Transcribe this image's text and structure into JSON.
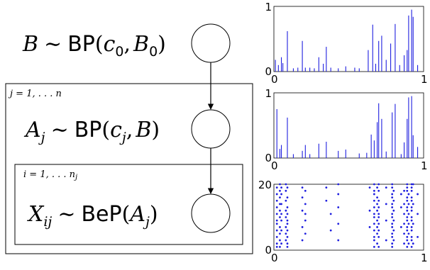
{
  "model": {
    "eq_b": {
      "lhs": "B",
      "op": "∼",
      "dist": "BP",
      "open": "(",
      "arg1": "c",
      "arg1_sub": "0",
      "comma": ",",
      "arg2": "B",
      "arg2_sub": "0",
      "close": ")"
    },
    "eq_a": {
      "lhs": "A",
      "lhs_sub": "j",
      "op": "∼",
      "dist": "BP",
      "open": "(",
      "arg1": "c",
      "arg1_sub": "j",
      "comma": ",",
      "arg2": "B",
      "close": ")"
    },
    "eq_x": {
      "lhs": "X",
      "lhs_sub": "ij",
      "op": "∼",
      "dist": "BeP",
      "open": "(",
      "arg1": "A",
      "arg1_sub": "j",
      "close": ")"
    },
    "plate_outer": {
      "label": "j = 1, . . . n"
    },
    "plate_inner": {
      "label": "i = 1, . . . n",
      "label_sub": "j"
    }
  },
  "chart_data": [
    {
      "type": "bar",
      "title": "",
      "xlabel": "",
      "ylabel": "",
      "xlim": [
        0,
        1
      ],
      "ylim": [
        0,
        1
      ],
      "xticks": [
        "0",
        "1"
      ],
      "yticks": [
        "0",
        "1"
      ],
      "color": "#1f1fdf",
      "x": [
        0.01,
        0.03,
        0.05,
        0.06,
        0.09,
        0.13,
        0.16,
        0.19,
        0.21,
        0.24,
        0.27,
        0.3,
        0.33,
        0.35,
        0.38,
        0.43,
        0.48,
        0.54,
        0.57,
        0.63,
        0.66,
        0.68,
        0.7,
        0.72,
        0.75,
        0.78,
        0.81,
        0.84,
        0.87,
        0.89,
        0.9,
        0.92,
        0.93,
        0.96
      ],
      "values": [
        0.18,
        0.1,
        0.22,
        0.13,
        0.62,
        0.05,
        0.06,
        0.47,
        0.06,
        0.06,
        0.05,
        0.22,
        0.12,
        0.38,
        0.06,
        0.05,
        0.08,
        0.06,
        0.05,
        0.33,
        0.72,
        0.12,
        0.47,
        0.55,
        0.18,
        0.43,
        0.73,
        0.1,
        0.25,
        0.33,
        0.86,
        0.95,
        0.84,
        0.1
      ]
    },
    {
      "type": "bar",
      "title": "",
      "xlabel": "",
      "ylabel": "",
      "xlim": [
        0,
        1
      ],
      "ylim": [
        0,
        1
      ],
      "xticks": [
        "0",
        "1"
      ],
      "yticks": [
        "0",
        "1"
      ],
      "color": "#1f1fdf",
      "x": [
        0.02,
        0.04,
        0.05,
        0.09,
        0.13,
        0.19,
        0.21,
        0.24,
        0.3,
        0.35,
        0.43,
        0.48,
        0.57,
        0.62,
        0.65,
        0.67,
        0.69,
        0.7,
        0.72,
        0.75,
        0.79,
        0.81,
        0.85,
        0.87,
        0.89,
        0.9,
        0.92,
        0.93,
        0.96
      ],
      "values": [
        0.75,
        0.14,
        0.2,
        0.62,
        0.06,
        0.11,
        0.2,
        0.06,
        0.22,
        0.25,
        0.11,
        0.13,
        0.07,
        0.08,
        0.36,
        0.27,
        0.55,
        0.84,
        0.6,
        0.1,
        0.7,
        0.83,
        0.06,
        0.24,
        0.6,
        0.93,
        0.95,
        0.35,
        0.17
      ]
    },
    {
      "type": "scatter",
      "title": "",
      "xlabel": "",
      "ylabel": "",
      "xlim": [
        0,
        1
      ],
      "ylim": [
        0,
        20
      ],
      "xticks": [
        "0",
        "1"
      ],
      "yticks": [
        "0",
        "20"
      ],
      "color": "#1f1fdf",
      "columns": [
        {
          "x": 0.02,
          "y": [
            1,
            2,
            4,
            6,
            8,
            9,
            11,
            13,
            15,
            17,
            19
          ]
        },
        {
          "x": 0.04,
          "y": [
            1,
            3,
            5,
            7,
            10,
            12,
            14,
            16,
            18,
            20
          ]
        },
        {
          "x": 0.05,
          "y": [
            2,
            6,
            9,
            11,
            14,
            17,
            19
          ]
        },
        {
          "x": 0.08,
          "y": [
            3,
            5,
            7,
            10,
            12,
            15,
            18,
            20
          ]
        },
        {
          "x": 0.09,
          "y": [
            1,
            2,
            4,
            6,
            8,
            9,
            11,
            13,
            16,
            19
          ]
        },
        {
          "x": 0.19,
          "y": [
            3,
            7,
            12,
            16,
            19
          ]
        },
        {
          "x": 0.21,
          "y": [
            5,
            9,
            11,
            14,
            18
          ]
        },
        {
          "x": 0.35,
          "y": [
            15,
            19
          ]
        },
        {
          "x": 0.38,
          "y": [
            6,
            11
          ]
        },
        {
          "x": 0.43,
          "y": [
            3,
            8,
            13,
            17,
            20
          ]
        },
        {
          "x": 0.64,
          "y": [
            7,
            12,
            19
          ]
        },
        {
          "x": 0.67,
          "y": [
            1,
            3,
            4,
            6,
            8,
            10,
            11,
            13,
            15,
            17,
            18,
            20
          ]
        },
        {
          "x": 0.69,
          "y": [
            2,
            5,
            7,
            9,
            12,
            14,
            16,
            19
          ]
        },
        {
          "x": 0.7,
          "y": [
            1,
            4,
            6,
            8,
            10,
            11,
            13,
            15,
            18,
            20
          ]
        },
        {
          "x": 0.75,
          "y": [
            3,
            9,
            14,
            19
          ]
        },
        {
          "x": 0.79,
          "y": [
            1,
            2,
            4,
            5,
            7,
            8,
            10,
            11,
            13,
            14,
            16,
            17,
            19,
            20
          ]
        },
        {
          "x": 0.8,
          "y": [
            3,
            6,
            9,
            12,
            15,
            18
          ]
        },
        {
          "x": 0.85,
          "y": [
            7,
            13,
            17
          ]
        },
        {
          "x": 0.87,
          "y": [
            2,
            5,
            8,
            11,
            14,
            18
          ]
        },
        {
          "x": 0.89,
          "y": [
            1,
            3,
            4,
            6,
            7,
            9,
            10,
            12,
            13,
            15,
            16,
            18,
            19,
            20
          ]
        },
        {
          "x": 0.9,
          "y": [
            2,
            5,
            8,
            11,
            14,
            17
          ]
        },
        {
          "x": 0.92,
          "y": [
            1,
            3,
            4,
            6,
            7,
            9,
            10,
            12,
            13,
            15,
            16,
            18,
            19,
            20
          ]
        },
        {
          "x": 0.93,
          "y": [
            2,
            8,
            14,
            20
          ]
        },
        {
          "x": 0.96,
          "y": [
            4,
            11,
            17
          ]
        }
      ]
    }
  ]
}
